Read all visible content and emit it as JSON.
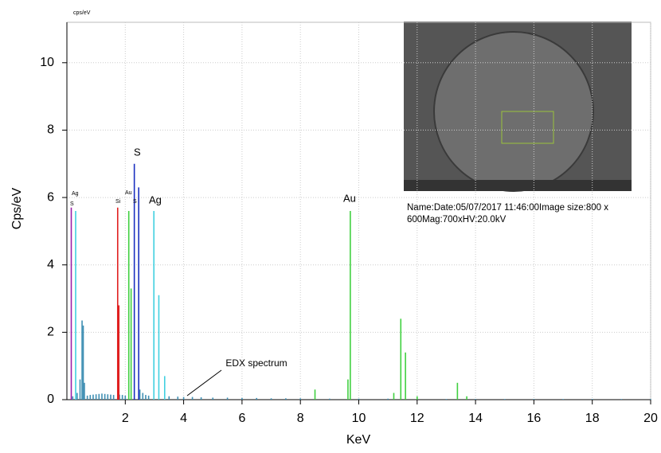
{
  "chart_data": {
    "type": "bar",
    "top_label": "cps/eV",
    "x_label": "KeV",
    "y_label": "Cps/eV",
    "xlim": [
      0,
      20
    ],
    "xticks": [
      2,
      4,
      6,
      8,
      10,
      12,
      14,
      16,
      18,
      20
    ],
    "ylim": [
      0,
      11.2
    ],
    "yticks": [
      0,
      2,
      4,
      6,
      8,
      10
    ],
    "grid": true,
    "series": [
      {
        "color": "#3f8fb3",
        "x": [
          0.2,
          0.35,
          0.45,
          0.52,
          0.56,
          0.6,
          0.7,
          0.8,
          0.9,
          1.0,
          1.1,
          1.2,
          1.3,
          1.4,
          1.5,
          1.6,
          1.8,
          1.9,
          2.0,
          2.5,
          2.6,
          2.7,
          2.8,
          3.5,
          3.8,
          4.0,
          4.3,
          4.6,
          5.0,
          5.5,
          6.0,
          6.5,
          7.0,
          7.5,
          8.0,
          9.0,
          10.0,
          11.0,
          12.0,
          13.0,
          14.0,
          15.0,
          16.0,
          17.0,
          18.0,
          19.0,
          20.0
        ],
        "values": [
          0.1,
          0.2,
          0.6,
          2.35,
          2.2,
          0.5,
          0.12,
          0.14,
          0.15,
          0.16,
          0.17,
          0.18,
          0.17,
          0.16,
          0.15,
          0.14,
          0.15,
          0.14,
          0.12,
          0.3,
          0.2,
          0.14,
          0.12,
          0.1,
          0.09,
          0.08,
          0.08,
          0.07,
          0.06,
          0.06,
          0.05,
          0.05,
          0.04,
          0.04,
          0.04,
          0.03,
          0.03,
          0.03,
          0.03,
          0.02,
          0.02,
          0.02,
          0.02,
          0.02,
          0.02,
          0.02,
          0.02
        ]
      },
      {
        "color": "#9b1fa8",
        "x": [
          0.15
        ],
        "values": [
          5.7
        ]
      },
      {
        "color": "#40d0e0",
        "x": [
          0.3,
          2.98,
          3.15,
          3.35
        ],
        "values": [
          5.6,
          5.6,
          3.1,
          0.7
        ]
      },
      {
        "color": "#e02020",
        "x": [
          1.74,
          1.78
        ],
        "values": [
          5.7,
          2.8
        ]
      },
      {
        "color": "#40d040",
        "x": [
          2.12,
          2.2,
          8.5,
          9.63,
          9.71,
          11.2,
          11.44,
          11.6,
          12.0,
          13.38,
          13.7
        ],
        "values": [
          5.6,
          3.3,
          0.3,
          0.6,
          5.6,
          0.2,
          2.4,
          1.4,
          0.1,
          0.5,
          0.1
        ]
      },
      {
        "color": "#1a2fc0",
        "x": [
          2.31,
          2.46
        ],
        "values": [
          7.0,
          6.3
        ]
      }
    ],
    "peak_labels": [
      "S",
      "Ag",
      "Si",
      "Au",
      "S",
      "S",
      "Ag",
      "Au"
    ],
    "annotation": "EDX spectrum",
    "inset_caption": "Name:Date:05/07/2017 11:46:00Image size:800 x 600Mag:700xHV:20.0kV"
  }
}
